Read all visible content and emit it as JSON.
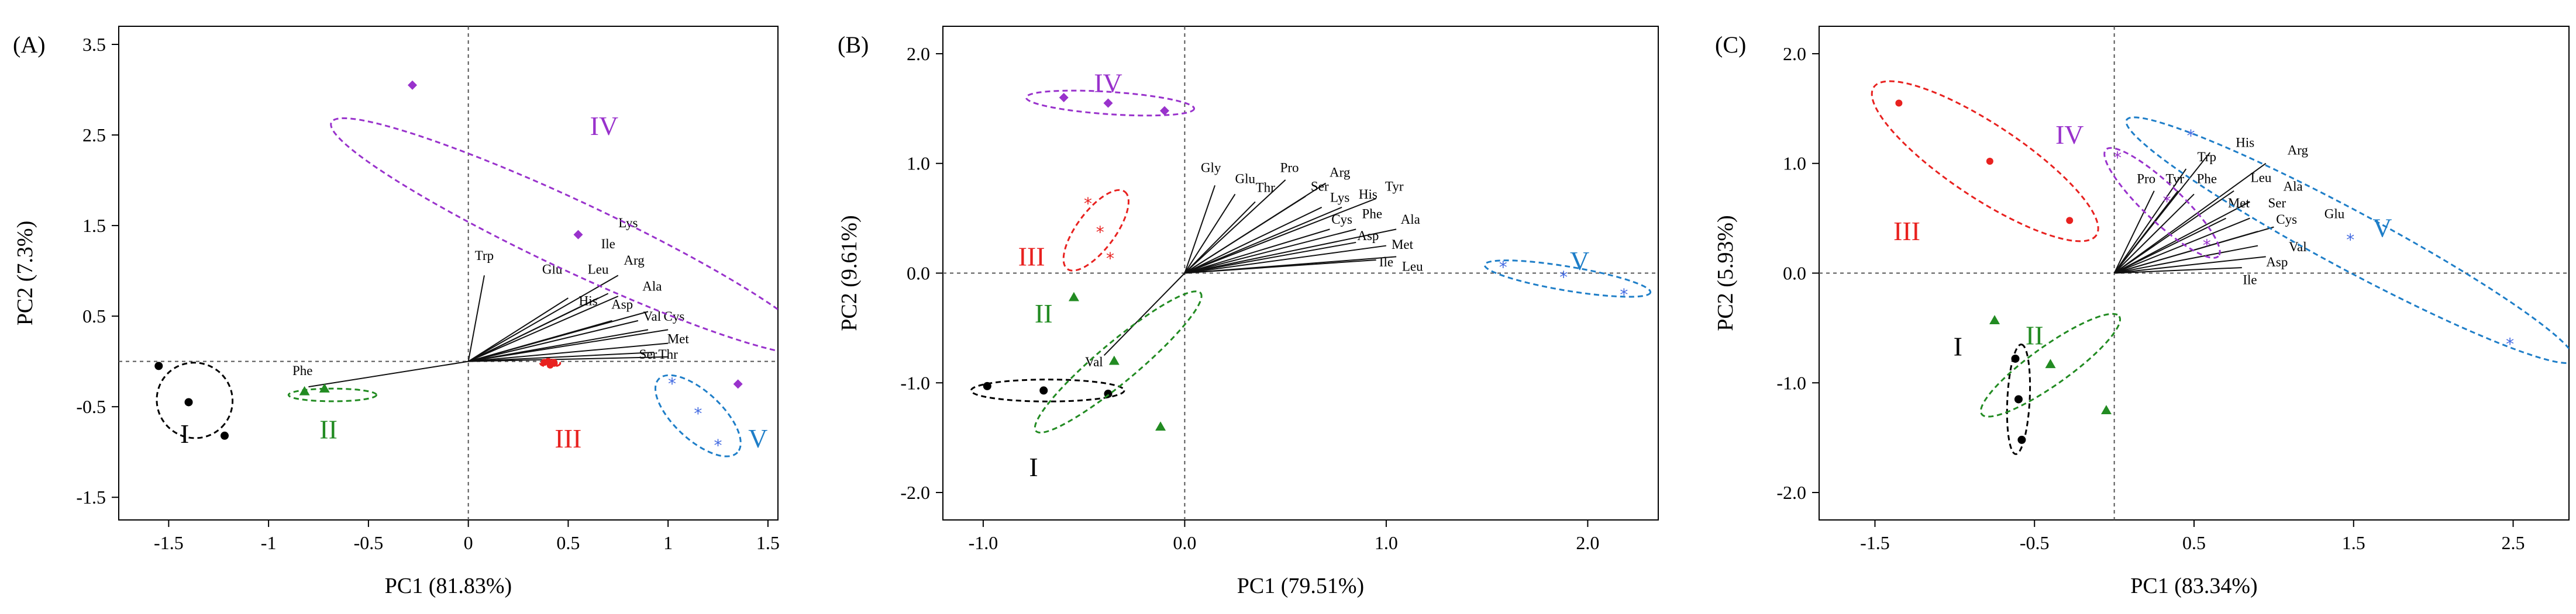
{
  "colors": {
    "I": "#000000",
    "II": "#228b22",
    "III": "#e8211f",
    "IV": "#9932cc",
    "V": "#1e7ec8",
    "V_points": "#4169e1"
  },
  "chart_data": [
    {
      "type": "scatter",
      "panel_label": "(A)",
      "xlabel": "PC1 (81.83%)",
      "ylabel": "PC2 (7.3%)",
      "xlim": [
        -1.75,
        1.55
      ],
      "ylim": [
        -1.75,
        3.7
      ],
      "xticks": [
        {
          "v": -1.5,
          "t": "-1.5"
        },
        {
          "v": -1,
          "t": "-1"
        },
        {
          "v": -0.5,
          "t": "-0.5"
        },
        {
          "v": 0,
          "t": "0"
        },
        {
          "v": 0.5,
          "t": "0.5"
        },
        {
          "v": 1,
          "t": "1"
        },
        {
          "v": 1.5,
          "t": "1.5"
        }
      ],
      "yticks": [
        {
          "v": -1.5,
          "t": "-1.5"
        },
        {
          "v": -0.5,
          "t": "-0.5"
        },
        {
          "v": 0.5,
          "t": "0.5"
        },
        {
          "v": 1.5,
          "t": "1.5"
        },
        {
          "v": 2.5,
          "t": "2.5"
        },
        {
          "v": 3.5,
          "t": "3.5"
        }
      ],
      "groups": [
        {
          "label": "I",
          "marker": "circle",
          "label_pos": [
            -1.42,
            -0.9
          ],
          "points": [
            [
              -1.55,
              -0.05
            ],
            [
              -1.4,
              -0.45
            ],
            [
              -1.22,
              -0.82
            ]
          ],
          "ellipse": {
            "cx": -1.37,
            "cy": -0.43,
            "rx": 0.3,
            "ry": 0.21,
            "angle": -60
          }
        },
        {
          "label": "II",
          "marker": "triangle",
          "label_pos": [
            -0.7,
            -0.85
          ],
          "points": [
            [
              -0.82,
              -0.33
            ],
            [
              -0.72,
              -0.3
            ]
          ],
          "ellipse": {
            "cx": -0.68,
            "cy": -0.37,
            "rx": 0.22,
            "ry": 0.07,
            "angle": 0
          }
        },
        {
          "label": "III",
          "marker": "point",
          "label_pos": [
            0.5,
            -0.95
          ],
          "points": [
            [
              0.38,
              -0.01
            ],
            [
              0.41,
              -0.04
            ],
            [
              0.43,
              -0.02
            ],
            [
              0.4,
              0.0
            ]
          ],
          "ellipse": {
            "cx": 0.41,
            "cy": -0.02,
            "rx": 0.05,
            "ry": 0.04,
            "angle": 0
          }
        },
        {
          "label": "IV",
          "marker": "diamond",
          "label_pos": [
            0.68,
            2.5
          ],
          "points": [
            [
              -0.28,
              3.05
            ],
            [
              0.55,
              1.4
            ],
            [
              1.35,
              -0.25
            ]
          ],
          "ellipse": {
            "cx": 0.53,
            "cy": 1.38,
            "rx": 1.75,
            "ry": 0.22,
            "angle": -46
          }
        },
        {
          "label": "V",
          "marker": "star",
          "label_pos": [
            1.45,
            -0.95
          ],
          "points": [
            [
              1.02,
              -0.25
            ],
            [
              1.15,
              -0.58
            ],
            [
              1.25,
              -0.93
            ]
          ],
          "ellipse": {
            "cx": 1.15,
            "cy": -0.6,
            "rx": 0.45,
            "ry": 0.13,
            "angle": -64
          }
        }
      ],
      "loadings": [
        {
          "label": "Trp",
          "x": 0.08,
          "y": 0.95,
          "lx": 0.08,
          "ly": 1.12
        },
        {
          "label": "Phe",
          "x": -0.8,
          "y": -0.28,
          "lx": -0.83,
          "ly": -0.15
        },
        {
          "label": "Lys",
          "x": 0.75,
          "y": 0.95,
          "lx": 0.8,
          "ly": 1.48
        },
        {
          "label": "Ile",
          "x": 0.7,
          "y": 0.75,
          "lx": 0.7,
          "ly": 1.25
        },
        {
          "label": "Glu",
          "x": 0.5,
          "y": 0.7,
          "lx": 0.42,
          "ly": 0.97
        },
        {
          "label": "Leu",
          "x": 0.65,
          "y": 0.7,
          "lx": 0.65,
          "ly": 0.97
        },
        {
          "label": "Arg",
          "x": 0.75,
          "y": 0.72,
          "lx": 0.83,
          "ly": 1.07
        },
        {
          "label": "Ala",
          "x": 0.9,
          "y": 0.55,
          "lx": 0.92,
          "ly": 0.78
        },
        {
          "label": "His",
          "x": 0.72,
          "y": 0.45,
          "lx": 0.6,
          "ly": 0.62
        },
        {
          "label": "Asp",
          "x": 0.85,
          "y": 0.45,
          "lx": 0.77,
          "ly": 0.58
        },
        {
          "label": "Val",
          "x": 0.9,
          "y": 0.35,
          "lx": 0.92,
          "ly": 0.45
        },
        {
          "label": "Cys",
          "x": 1.0,
          "y": 0.35,
          "lx": 1.03,
          "ly": 0.45
        },
        {
          "label": "Met",
          "x": 1.0,
          "y": 0.2,
          "lx": 1.05,
          "ly": 0.2
        },
        {
          "label": "Ser",
          "x": 0.93,
          "y": 0.1,
          "lx": 0.9,
          "ly": 0.03
        },
        {
          "label": "Thr",
          "x": 1.0,
          "y": 0.05,
          "lx": 1.0,
          "ly": 0.03
        }
      ]
    },
    {
      "type": "scatter",
      "panel_label": "(B)",
      "xlabel": "PC1 (79.51%)",
      "ylabel": "PC2 (9.61%)",
      "xlim": [
        -1.2,
        2.35
      ],
      "ylim": [
        -2.25,
        2.25
      ],
      "xticks": [
        {
          "v": -1,
          "t": "-1.0"
        },
        {
          "v": 0,
          "t": "0.0"
        },
        {
          "v": 1,
          "t": "1.0"
        },
        {
          "v": 2,
          "t": "2.0"
        }
      ],
      "yticks": [
        {
          "v": -2,
          "t": "-2.0"
        },
        {
          "v": -1,
          "t": "-1.0"
        },
        {
          "v": 0,
          "t": "0.0"
        },
        {
          "v": 1,
          "t": "1.0"
        },
        {
          "v": 2,
          "t": "2.0"
        }
      ],
      "groups": [
        {
          "label": "I",
          "marker": "circle",
          "label_pos": [
            -0.75,
            -1.85
          ],
          "points": [
            [
              -0.98,
              -1.03
            ],
            [
              -0.7,
              -1.07
            ],
            [
              -0.38,
              -1.1
            ]
          ],
          "ellipse": {
            "cx": -0.68,
            "cy": -1.07,
            "rx": 0.38,
            "ry": 0.1,
            "angle": 0
          }
        },
        {
          "label": "II",
          "marker": "triangle",
          "label_pos": [
            -0.7,
            -0.45
          ],
          "points": [
            [
              -0.55,
              -0.22
            ],
            [
              -0.35,
              -0.8
            ],
            [
              -0.12,
              -1.4
            ]
          ],
          "ellipse": {
            "cx": -0.33,
            "cy": -0.81,
            "rx": 0.75,
            "ry": 0.11,
            "angle": 57
          }
        },
        {
          "label": "III",
          "marker": "star",
          "label_pos": [
            -0.76,
            0.07
          ],
          "points": [
            [
              -0.48,
              0.63
            ],
            [
              -0.42,
              0.37
            ],
            [
              -0.37,
              0.13
            ]
          ],
          "ellipse": {
            "cx": -0.44,
            "cy": 0.39,
            "rx": 0.38,
            "ry": 0.1,
            "angle": 68
          }
        },
        {
          "label": "IV",
          "marker": "diamond",
          "label_pos": [
            -0.38,
            1.65
          ],
          "points": [
            [
              -0.6,
              1.6
            ],
            [
              -0.38,
              1.55
            ],
            [
              -0.1,
              1.48
            ]
          ],
          "ellipse": {
            "cx": -0.37,
            "cy": 1.55,
            "rx": 0.42,
            "ry": 0.1,
            "angle": -7
          }
        },
        {
          "label": "V",
          "marker": "star",
          "label_pos": [
            1.96,
            0.03
          ],
          "points": [
            [
              1.58,
              0.05
            ],
            [
              1.88,
              -0.04
            ],
            [
              2.18,
              -0.2
            ]
          ],
          "ellipse": {
            "cx": 1.9,
            "cy": -0.05,
            "rx": 0.43,
            "ry": 0.1,
            "angle": -17
          }
        }
      ],
      "loadings": [
        {
          "label": "Gly",
          "x": 0.15,
          "y": 0.8,
          "lx": 0.13,
          "ly": 0.92
        },
        {
          "label": "Glu",
          "x": 0.25,
          "y": 0.72,
          "lx": 0.3,
          "ly": 0.82
        },
        {
          "label": "Thr",
          "x": 0.35,
          "y": 0.65,
          "lx": 0.4,
          "ly": 0.74
        },
        {
          "label": "Pro",
          "x": 0.5,
          "y": 0.85,
          "lx": 0.52,
          "ly": 0.92
        },
        {
          "label": "Arg",
          "x": 0.7,
          "y": 0.82,
          "lx": 0.77,
          "ly": 0.88
        },
        {
          "label": "Ser",
          "x": 0.6,
          "y": 0.7,
          "lx": 0.67,
          "ly": 0.75
        },
        {
          "label": "Lys",
          "x": 0.68,
          "y": 0.6,
          "lx": 0.77,
          "ly": 0.65
        },
        {
          "label": "His",
          "x": 0.78,
          "y": 0.6,
          "lx": 0.91,
          "ly": 0.68
        },
        {
          "label": "Tyr",
          "x": 0.95,
          "y": 0.68,
          "lx": 1.04,
          "ly": 0.75
        },
        {
          "label": "Cys",
          "x": 0.72,
          "y": 0.4,
          "lx": 0.78,
          "ly": 0.45
        },
        {
          "label": "Phe",
          "x": 0.85,
          "y": 0.4,
          "lx": 0.93,
          "ly": 0.5
        },
        {
          "label": "Ala",
          "x": 1.05,
          "y": 0.4,
          "lx": 1.12,
          "ly": 0.45
        },
        {
          "label": "Asp",
          "x": 0.85,
          "y": 0.28,
          "lx": 0.91,
          "ly": 0.3
        },
        {
          "label": "Met",
          "x": 1.0,
          "y": 0.25,
          "lx": 1.08,
          "ly": 0.22
        },
        {
          "label": "Ile",
          "x": 0.95,
          "y": 0.12,
          "lx": 1.0,
          "ly": 0.06
        },
        {
          "label": "Leu",
          "x": 1.05,
          "y": 0.15,
          "lx": 1.13,
          "ly": 0.02
        },
        {
          "label": "Val",
          "x": -0.4,
          "y": -0.75,
          "lx": -0.45,
          "ly": -0.85
        }
      ]
    },
    {
      "type": "scatter",
      "panel_label": "(C)",
      "xlabel": "PC1 (83.34%)",
      "ylabel": "PC2 (5.93%)",
      "xlim": [
        -1.85,
        2.85
      ],
      "ylim": [
        -2.25,
        2.25
      ],
      "xticks": [
        {
          "v": -1.5,
          "t": "-1.5"
        },
        {
          "v": -0.5,
          "t": "-0.5"
        },
        {
          "v": 0.5,
          "t": "0.5"
        },
        {
          "v": 1.5,
          "t": "1.5"
        },
        {
          "v": 2.5,
          "t": "2.5"
        }
      ],
      "yticks": [
        {
          "v": -2,
          "t": "-2.0"
        },
        {
          "v": -1,
          "t": "-1.0"
        },
        {
          "v": 0,
          "t": "0.0"
        },
        {
          "v": 1,
          "t": "1.0"
        },
        {
          "v": 2,
          "t": "2.0"
        }
      ],
      "groups": [
        {
          "label": "I",
          "marker": "circle",
          "label_pos": [
            -0.98,
            -0.75
          ],
          "points": [
            [
              -0.62,
              -0.78
            ],
            [
              -0.6,
              -1.15
            ],
            [
              -0.58,
              -1.52
            ]
          ],
          "ellipse": {
            "cx": -0.6,
            "cy": -1.15,
            "rx": 0.5,
            "ry": 0.07,
            "angle": 88
          }
        },
        {
          "label": "II",
          "marker": "triangle",
          "label_pos": [
            -0.5,
            -0.65
          ],
          "points": [
            [
              -0.75,
              -0.43
            ],
            [
              -0.4,
              -0.83
            ],
            [
              -0.05,
              -1.25
            ]
          ],
          "ellipse": {
            "cx": -0.4,
            "cy": -0.84,
            "rx": 0.62,
            "ry": 0.14,
            "angle": 46
          }
        },
        {
          "label": "III",
          "marker": "point",
          "label_pos": [
            -1.3,
            0.3
          ],
          "points": [
            [
              -1.35,
              1.55
            ],
            [
              -0.78,
              1.02
            ],
            [
              -0.28,
              0.48
            ]
          ],
          "ellipse": {
            "cx": -0.81,
            "cy": 1.02,
            "rx": 0.97,
            "ry": 0.27,
            "angle": -44
          }
        },
        {
          "label": "IV",
          "marker": "star",
          "label_pos": [
            -0.28,
            1.18
          ],
          "points": [
            [
              0.02,
              1.05
            ],
            [
              0.33,
              0.65
            ],
            [
              0.58,
              0.25
            ]
          ],
          "ellipse": {
            "cx": 0.3,
            "cy": 0.64,
            "rx": 0.6,
            "ry": 0.13,
            "angle": -54
          }
        },
        {
          "label": "V",
          "marker": "star",
          "label_pos": [
            1.68,
            0.33
          ],
          "points": [
            [
              0.48,
              1.25
            ],
            [
              1.48,
              0.3
            ],
            [
              2.48,
              -0.65
            ]
          ],
          "ellipse": {
            "cx": 1.48,
            "cy": 0.3,
            "rx": 1.78,
            "ry": 0.22,
            "angle": -38
          }
        }
      ],
      "loadings": [
        {
          "label": "Pro",
          "x": 0.25,
          "y": 0.75,
          "lx": 0.2,
          "ly": 0.82
        },
        {
          "label": "Tyr",
          "x": 0.4,
          "y": 0.75,
          "lx": 0.38,
          "ly": 0.82
        },
        {
          "label": "Phe",
          "x": 0.5,
          "y": 0.72,
          "lx": 0.58,
          "ly": 0.82
        },
        {
          "label": "Trp",
          "x": 0.45,
          "y": 0.95,
          "lx": 0.58,
          "ly": 1.02
        },
        {
          "label": "His",
          "x": 0.6,
          "y": 1.1,
          "lx": 0.82,
          "ly": 1.15
        },
        {
          "label": "Arg",
          "x": 0.95,
          "y": 1.0,
          "lx": 1.15,
          "ly": 1.08
        },
        {
          "label": "Leu",
          "x": 0.75,
          "y": 0.75,
          "lx": 0.92,
          "ly": 0.83
        },
        {
          "label": "Ala",
          "x": 0.85,
          "y": 0.65,
          "lx": 1.12,
          "ly": 0.75
        },
        {
          "label": "Met",
          "x": 0.7,
          "y": 0.5,
          "lx": 0.78,
          "ly": 0.6
        },
        {
          "label": "Ser",
          "x": 0.85,
          "y": 0.5,
          "lx": 1.02,
          "ly": 0.6
        },
        {
          "label": "Cys",
          "x": 0.9,
          "y": 0.38,
          "lx": 1.08,
          "ly": 0.45
        },
        {
          "label": "Glu",
          "x": 1.0,
          "y": 0.42,
          "lx": 1.38,
          "ly": 0.5
        },
        {
          "label": "Val",
          "x": 0.9,
          "y": 0.25,
          "lx": 1.15,
          "ly": 0.2
        },
        {
          "label": "Asp",
          "x": 0.95,
          "y": 0.15,
          "lx": 1.02,
          "ly": 0.06
        },
        {
          "label": "Ile",
          "x": 0.8,
          "y": 0.05,
          "lx": 0.85,
          "ly": -0.1
        }
      ]
    }
  ]
}
